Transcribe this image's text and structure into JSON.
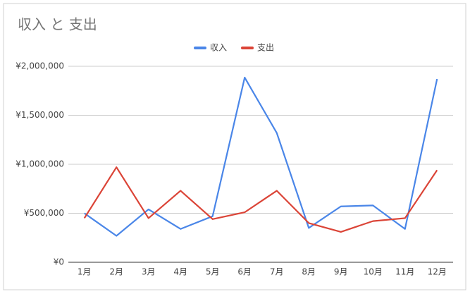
{
  "chart_data": {
    "type": "line",
    "title": "収入 と 支出",
    "categories": [
      "1月",
      "2月",
      "3月",
      "4月",
      "5月",
      "6月",
      "7月",
      "8月",
      "9月",
      "10月",
      "11月",
      "12月"
    ],
    "series": [
      {
        "name": "収入",
        "color": "#4a86e8",
        "values": [
          500000,
          270000,
          540000,
          340000,
          470000,
          1885000,
          1320000,
          350000,
          570000,
          580000,
          340000,
          1870000
        ]
      },
      {
        "name": "支出",
        "color": "#db4437",
        "values": [
          450000,
          970000,
          450000,
          730000,
          440000,
          510000,
          730000,
          400000,
          310000,
          420000,
          450000,
          940000
        ]
      }
    ],
    "ylim": [
      0,
      2000000
    ],
    "yticks": [
      {
        "value": 0,
        "label": "¥0"
      },
      {
        "value": 500000,
        "label": "¥500,000"
      },
      {
        "value": 1000000,
        "label": "¥1,000,000"
      },
      {
        "value": 1500000,
        "label": "¥1,500,000"
      },
      {
        "value": 2000000,
        "label": "¥2,000,000"
      }
    ],
    "grid": true,
    "legend": "top"
  }
}
